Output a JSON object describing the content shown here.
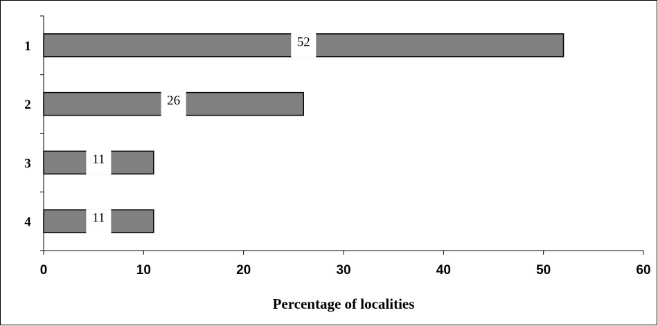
{
  "chart_data": {
    "type": "bar",
    "orientation": "horizontal",
    "categories": [
      "1",
      "2",
      "3",
      "4"
    ],
    "values": [
      52,
      26,
      11,
      11
    ],
    "data_labels": [
      "52",
      "26",
      "11",
      "11"
    ],
    "xlabel": "Percentage of localities",
    "ylabel": "",
    "title": "",
    "xlim": [
      0,
      60
    ],
    "x_ticks": [
      "0",
      "10",
      "20",
      "30",
      "40",
      "50",
      "60"
    ],
    "grid": false,
    "legend": "none",
    "bar_color": "#808080",
    "bar_edge_color": "#000000"
  }
}
